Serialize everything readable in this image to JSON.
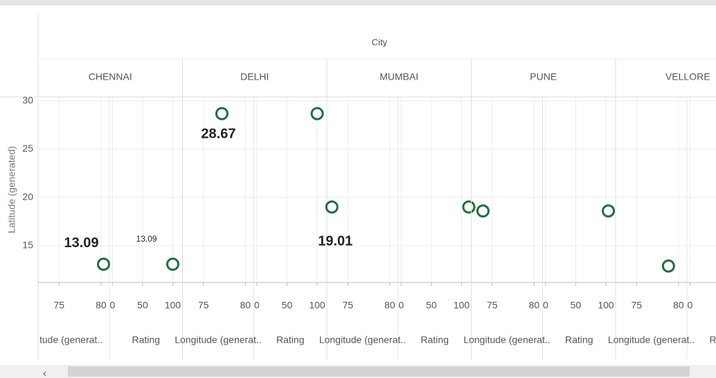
{
  "chart_data": {
    "type": "scatter",
    "title": "City",
    "y_title": "Latitude (generated)",
    "ylim": [
      11.2,
      30.4
    ],
    "yticks": [
      15,
      20,
      25,
      30
    ],
    "grid": true,
    "color": "#1f6e3a",
    "panes": {
      "longitude": {
        "xlim": [
          72.5,
          81
        ],
        "xticks": [
          75,
          80
        ]
      },
      "rating": {
        "xlim": [
          -5,
          116
        ],
        "xticks": [
          0,
          50,
          100
        ]
      }
    },
    "facets": [
      {
        "name": "CHENNAI",
        "x_titles": [
          "tude (generat..",
          "Rating"
        ],
        "longitude": 80.3,
        "rating": 100,
        "latitude": 13.09,
        "label_panes": [
          "longitude",
          "rating"
        ]
      },
      {
        "name": "DELHI",
        "x_titles": [
          "Longitude (generat..",
          "Rating"
        ],
        "longitude": 77.2,
        "rating": 100,
        "latitude": 28.67,
        "label_panes": [
          "longitude"
        ]
      },
      {
        "name": "MUMBAI",
        "x_titles": [
          "Longitude (generat..",
          "Rating"
        ],
        "longitude": 73.1,
        "rating": 112,
        "latitude": 19.01,
        "label_panes": [
          "longitude"
        ]
      },
      {
        "name": "PUNE",
        "x_titles": [
          "Longitude (generat..",
          "Rating"
        ],
        "longitude": 73.9,
        "rating": 104,
        "latitude": 18.6,
        "label_panes": []
      },
      {
        "name": "VELLORE",
        "x_titles": [
          "Longitude (generat..",
          "Rating"
        ],
        "longitude": 78.8,
        "rating": null,
        "latitude": 12.9,
        "label_panes": []
      }
    ]
  }
}
